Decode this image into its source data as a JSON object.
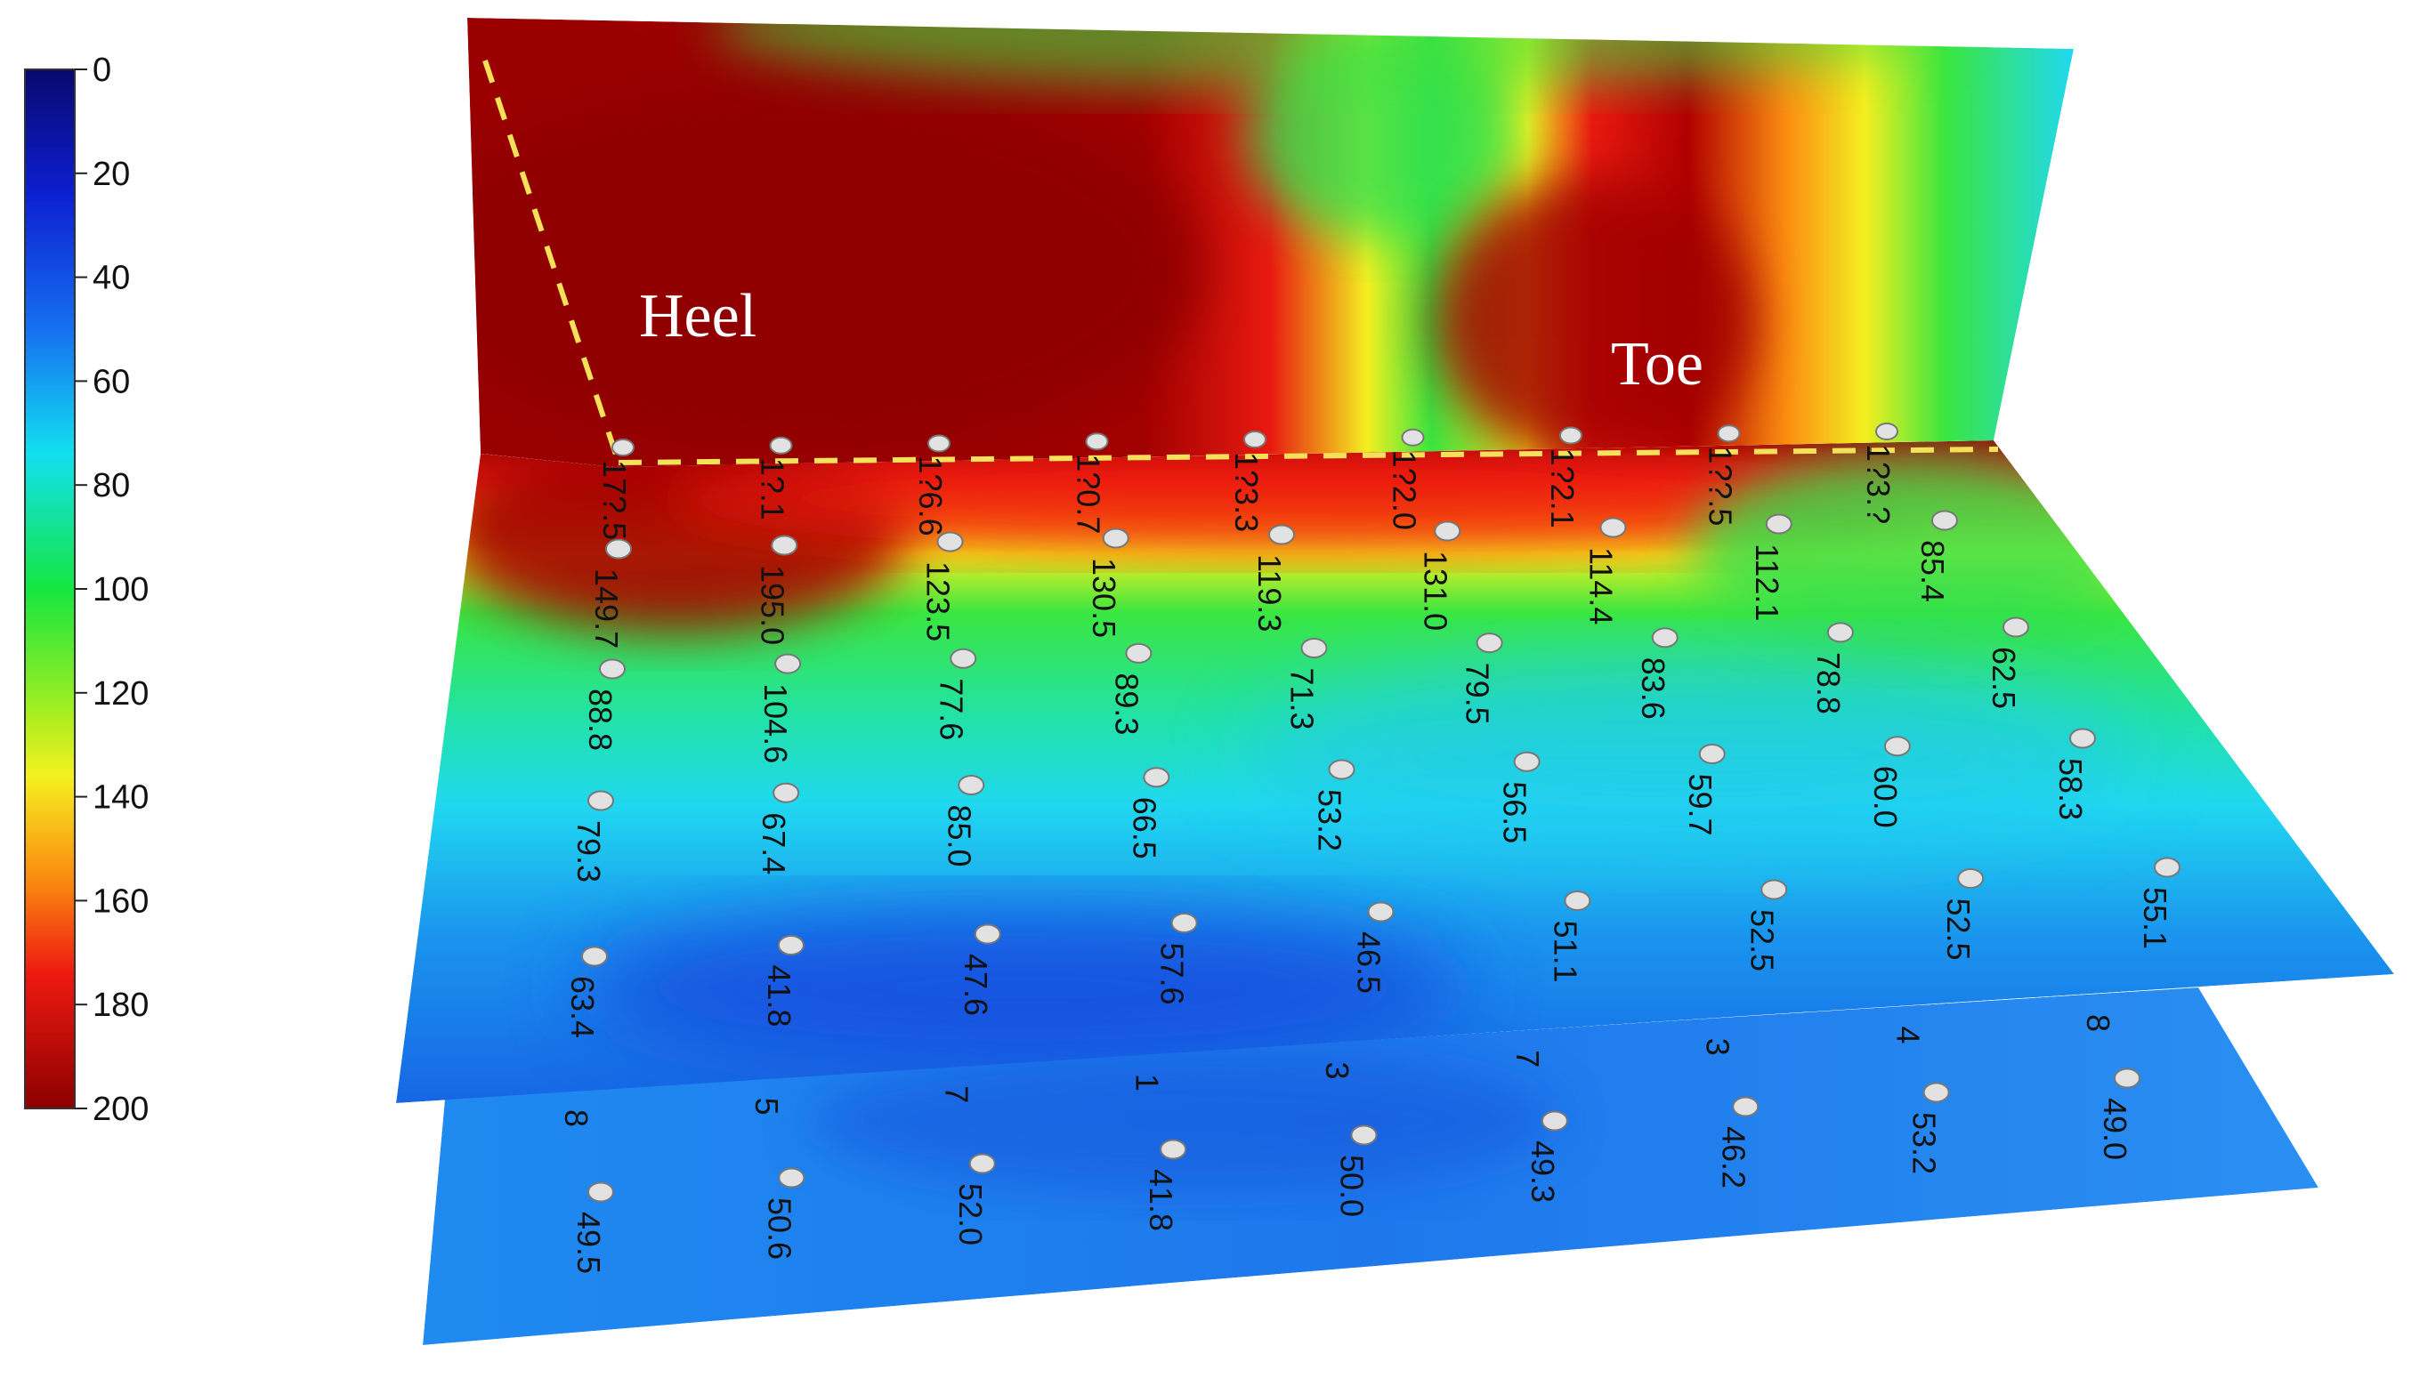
{
  "chart_data": {
    "type": "heatmap",
    "colorbar": {
      "range": [
        0,
        200
      ],
      "ticks": [
        "0",
        "20",
        "40",
        "60",
        "80",
        "100",
        "120",
        "140",
        "160",
        "180",
        "200"
      ],
      "orientation": "vertical"
    },
    "annotations": [
      {
        "text": "Heel"
      },
      {
        "text": "Toe"
      }
    ],
    "vertical_plate": {
      "values": [
        [
          "17?.5",
          "1?.1",
          "1?6.6",
          "1?0.7",
          "1?3.3",
          "1?2.0",
          "1?2.1",
          "1??.5",
          "1?3.?"
        ]
      ]
    },
    "horizontal_plate": {
      "rows": [
        [
          "149.7",
          "195.0",
          "123.5",
          "130.5",
          "119.3",
          "131.0",
          "114.4",
          "112.1",
          "85.4"
        ],
        [
          "88.8",
          "104.6",
          "77.6",
          "89.3",
          "71.3",
          "79.5",
          "83.6",
          "78.8",
          "62.5"
        ],
        [
          "79.3",
          "67.4",
          "85.0",
          "66.5",
          "53.2",
          "56.5",
          "59.7",
          "60.0",
          "58.3"
        ],
        [
          "63.4",
          "41.8",
          "47.6",
          "57.6",
          "46.5",
          "51.1",
          "52.5",
          "52.5",
          "55.1"
        ]
      ]
    },
    "lower_plate": {
      "partial_labels": [
        "8",
        "5",
        "7",
        "1",
        "3",
        "7",
        "3",
        "4",
        "8"
      ],
      "values": [
        "49.5",
        "50.6",
        "52.0",
        "41.8",
        "50.0",
        "49.3",
        "46.2",
        "53.2",
        "49.0"
      ]
    },
    "colors": {
      "stops": [
        "#08086e",
        "#0c1fd0",
        "#1670f0",
        "#12e0f0",
        "#14e640",
        "#e8f020",
        "#fb8a10",
        "#ee1a10",
        "#8c0000"
      ],
      "fusion_line": "#f4e15a"
    }
  }
}
